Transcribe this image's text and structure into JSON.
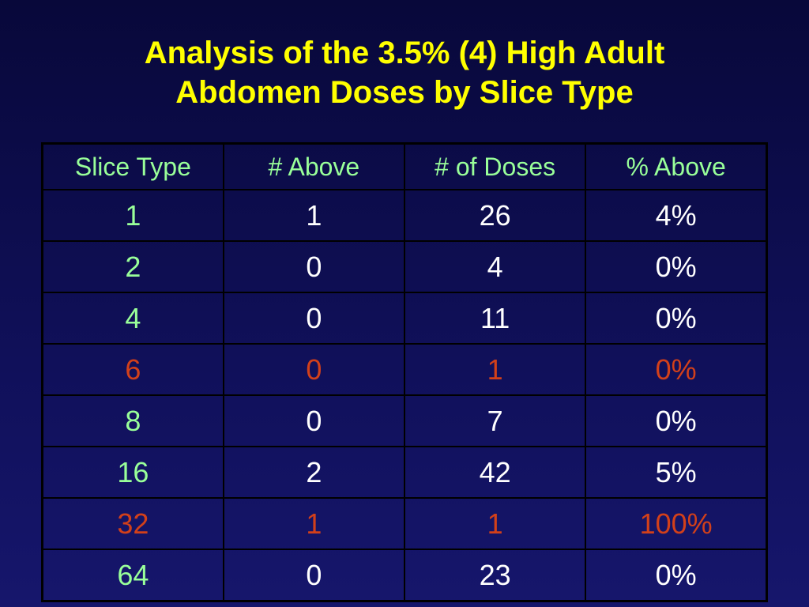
{
  "slide": {
    "title_lines": [
      "Analysis of the 3.5% (4) High Adult",
      "Abdomen Doses by Slice Type"
    ],
    "title_color": "#ffff00",
    "table": {
      "header_color": "#99ff99",
      "first_column_color": "#99ff99",
      "text_color": "#ffffff",
      "highlight_color": "#d2401a",
      "columns": [
        "Slice Type",
        "# Above",
        "# of Doses",
        "% Above"
      ],
      "rows": [
        {
          "cells": [
            "1",
            "1",
            "26",
            "4%"
          ],
          "highlight": false
        },
        {
          "cells": [
            "2",
            "0",
            "4",
            "0%"
          ],
          "highlight": false
        },
        {
          "cells": [
            "4",
            "0",
            "11",
            "0%"
          ],
          "highlight": false
        },
        {
          "cells": [
            "6",
            "0",
            "1",
            "0%"
          ],
          "highlight": true
        },
        {
          "cells": [
            "8",
            "0",
            "7",
            "0%"
          ],
          "highlight": false
        },
        {
          "cells": [
            "16",
            "2",
            "42",
            "5%"
          ],
          "highlight": false
        },
        {
          "cells": [
            "32",
            "1",
            "1",
            "100%"
          ],
          "highlight": true
        },
        {
          "cells": [
            "64",
            "0",
            "23",
            "0%"
          ],
          "highlight": false
        }
      ]
    }
  }
}
